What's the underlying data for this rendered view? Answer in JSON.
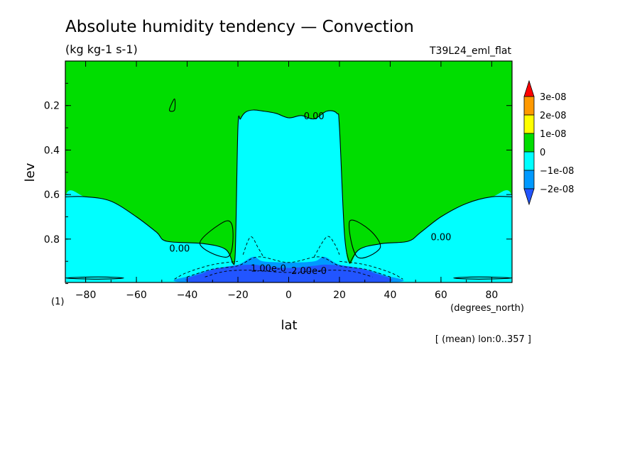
{
  "chart_data": {
    "type": "heatmap",
    "title": "Absolute humidity tendency — Convection",
    "units": "(kg kg-1 s-1)",
    "experiment": "T39L24_eml_flat",
    "xlabel": "lat",
    "xunits": "(degrees_north)",
    "ylabel": "lev",
    "yunits": "(1)",
    "footnote": "[ (mean) lon:0..357 ]",
    "xlim": [
      -88,
      88
    ],
    "ylim": [
      0.0,
      0.995
    ],
    "y_inverted": true,
    "x_ticks": [
      -80,
      -60,
      -40,
      -20,
      0,
      20,
      40,
      60,
      80
    ],
    "x_tick_labels": [
      "−80",
      "−60",
      "−40",
      "−20",
      "0",
      "20",
      "40",
      "60",
      "80"
    ],
    "y_ticks": [
      0.2,
      0.4,
      0.6,
      0.8
    ],
    "y_tick_labels": [
      "0.2",
      "0.4",
      "0.6",
      "0.8"
    ],
    "grid": false,
    "legend_position": "right",
    "colorbar": {
      "levels": [
        "3e-08",
        "2e-08",
        "1e-08",
        "0",
        "−1e-08",
        "−2e-08"
      ],
      "colors": [
        "#ff0000",
        "#ff9900",
        "#ffff00",
        "#00dd00",
        "#00ffff",
        "#0099ff",
        "#2255ff"
      ],
      "extend": "both"
    },
    "regions": [
      {
        "value_range": "0 to 1e-08",
        "color": "#00dd00",
        "boundary": [
          [
            -88,
            0.0
          ],
          [
            88,
            0.0
          ],
          [
            88,
            0.61
          ],
          [
            80,
            0.61
          ],
          [
            70,
            0.64
          ],
          [
            60,
            0.7
          ],
          [
            52,
            0.77
          ],
          [
            47,
            0.81
          ],
          [
            37,
            0.82
          ],
          [
            28,
            0.845
          ],
          [
            24,
            0.91
          ],
          [
            22,
            0.78
          ],
          [
            20,
            0.3
          ],
          [
            19,
            0.235
          ],
          [
            15,
            0.225
          ],
          [
            10,
            0.26
          ],
          [
            5,
            0.245
          ],
          [
            0,
            0.255
          ],
          [
            -5,
            0.235
          ],
          [
            -10,
            0.225
          ],
          [
            -14,
            0.22
          ],
          [
            -17,
            0.23
          ],
          [
            -19,
            0.26
          ],
          [
            -20,
            0.3
          ],
          [
            -21,
            0.85
          ],
          [
            -22,
            0.91
          ],
          [
            -25,
            0.845
          ],
          [
            -34,
            0.82
          ],
          [
            -48,
            0.81
          ],
          [
            -52,
            0.77
          ],
          [
            -60,
            0.7
          ],
          [
            -70,
            0.63
          ],
          [
            -80,
            0.61
          ],
          [
            -88,
            0.61
          ]
        ]
      },
      {
        "value_range": "-1e-08 to 0",
        "color": "#00ffff",
        "boundary": [
          [
            -88,
            0.61
          ],
          [
            -80,
            0.61
          ],
          [
            -70,
            0.63
          ],
          [
            -60,
            0.7
          ],
          [
            -52,
            0.77
          ],
          [
            -48,
            0.81
          ],
          [
            -34,
            0.82
          ],
          [
            -25,
            0.845
          ],
          [
            -22,
            0.91
          ],
          [
            -21,
            0.85
          ],
          [
            -20,
            0.3
          ],
          [
            -19,
            0.26
          ],
          [
            -17,
            0.23
          ],
          [
            -14,
            0.22
          ],
          [
            -10,
            0.225
          ],
          [
            -5,
            0.235
          ],
          [
            0,
            0.255
          ],
          [
            5,
            0.245
          ],
          [
            10,
            0.26
          ],
          [
            15,
            0.225
          ],
          [
            19,
            0.235
          ],
          [
            20,
            0.3
          ],
          [
            22,
            0.78
          ],
          [
            24,
            0.91
          ],
          [
            28,
            0.845
          ],
          [
            37,
            0.82
          ],
          [
            47,
            0.81
          ],
          [
            52,
            0.77
          ],
          [
            60,
            0.7
          ],
          [
            70,
            0.64
          ],
          [
            80,
            0.61
          ],
          [
            88,
            0.61
          ],
          [
            88,
            0.995
          ],
          [
            -88,
            0.995
          ]
        ]
      },
      {
        "value_range": "-2e-08 to -1e-08",
        "color": "#0099ff",
        "boundary": [
          [
            -40,
            0.995
          ],
          [
            -37,
            0.96
          ],
          [
            -30,
            0.935
          ],
          [
            -20,
            0.915
          ],
          [
            -14,
            0.88
          ],
          [
            -10,
            0.9
          ],
          [
            0,
            0.905
          ],
          [
            10,
            0.9
          ],
          [
            14,
            0.88
          ],
          [
            20,
            0.915
          ],
          [
            30,
            0.935
          ],
          [
            37,
            0.96
          ],
          [
            40,
            0.995
          ]
        ]
      },
      {
        "value_range": "< -2e-08",
        "color": "#2255ff",
        "boundary": [
          [
            -36,
            0.995
          ],
          [
            -33,
            0.95
          ],
          [
            -25,
            0.925
          ],
          [
            -15,
            0.915
          ],
          [
            -10,
            0.92
          ],
          [
            0,
            0.93
          ],
          [
            10,
            0.92
          ],
          [
            15,
            0.915
          ],
          [
            25,
            0.925
          ],
          [
            33,
            0.95
          ],
          [
            36,
            0.995
          ]
        ]
      }
    ],
    "contours": [
      {
        "label": "0.00",
        "label_at": [
          -43,
          0.84
        ],
        "points": [
          [
            -88,
            0.61
          ],
          [
            -80,
            0.61
          ],
          [
            -70,
            0.63
          ],
          [
            -60,
            0.7
          ],
          [
            -52,
            0.77
          ],
          [
            -48,
            0.81
          ],
          [
            -34,
            0.82
          ],
          [
            -25,
            0.845
          ],
          [
            -22,
            0.91
          ]
        ]
      },
      {
        "label": "0.00",
        "label_at": [
          10,
          0.245
        ],
        "points": [
          [
            -22,
            0.91
          ],
          [
            -21,
            0.85
          ],
          [
            -20,
            0.3
          ],
          [
            -19,
            0.26
          ],
          [
            -17,
            0.23
          ],
          [
            -14,
            0.22
          ],
          [
            -10,
            0.225
          ],
          [
            -5,
            0.235
          ],
          [
            0,
            0.255
          ],
          [
            5,
            0.245
          ],
          [
            10,
            0.26
          ],
          [
            15,
            0.225
          ],
          [
            19,
            0.235
          ],
          [
            20,
            0.3
          ],
          [
            22,
            0.78
          ],
          [
            24,
            0.91
          ]
        ]
      },
      {
        "label": "0.00",
        "label_at": [
          60,
          0.79
        ],
        "points": [
          [
            24,
            0.91
          ],
          [
            28,
            0.845
          ],
          [
            37,
            0.82
          ],
          [
            47,
            0.81
          ],
          [
            52,
            0.77
          ],
          [
            60,
            0.7
          ],
          [
            70,
            0.64
          ],
          [
            80,
            0.61
          ],
          [
            88,
            0.61
          ]
        ]
      },
      {
        "label": "",
        "points": [
          [
            -35,
            0.82
          ],
          [
            -25,
            0.72
          ],
          [
            -22,
            0.76
          ],
          [
            -24,
            0.88
          ],
          [
            -35,
            0.82
          ]
        ]
      },
      {
        "label": "",
        "points": [
          [
            24,
            0.72
          ],
          [
            32,
            0.76
          ],
          [
            36,
            0.84
          ],
          [
            27,
            0.88
          ],
          [
            24,
            0.72
          ]
        ]
      },
      {
        "label": "",
        "points": [
          [
            -47,
            0.22
          ],
          [
            -45,
            0.17
          ],
          [
            -45,
            0.22
          ],
          [
            -47,
            0.22
          ]
        ]
      },
      {
        "label": "",
        "points": [
          [
            -88,
            0.975
          ],
          [
            -75,
            0.97
          ],
          [
            -65,
            0.975
          ],
          [
            -75,
            0.98
          ],
          [
            -88,
            0.975
          ]
        ]
      },
      {
        "label": "",
        "points": [
          [
            88,
            0.975
          ],
          [
            75,
            0.97
          ],
          [
            65,
            0.975
          ],
          [
            75,
            0.98
          ],
          [
            88,
            0.975
          ]
        ]
      }
    ],
    "dashed_contours": [
      {
        "label": "1.00e-0",
        "label_at": [
          -8,
          0.93
        ],
        "points": [
          [
            -40,
            0.97
          ],
          [
            -30,
            0.935
          ],
          [
            -20,
            0.92
          ],
          [
            -12,
            0.88
          ],
          [
            0,
            0.905
          ],
          [
            12,
            0.88
          ],
          [
            20,
            0.92
          ],
          [
            30,
            0.935
          ],
          [
            40,
            0.97
          ]
        ]
      },
      {
        "label": "2.00e-0",
        "label_at": [
          8,
          0.94
        ],
        "points": [
          [
            -33,
            0.97
          ],
          [
            -25,
            0.945
          ],
          [
            -15,
            0.94
          ],
          [
            0,
            0.95
          ],
          [
            15,
            0.94
          ],
          [
            25,
            0.945
          ],
          [
            33,
            0.97
          ]
        ]
      },
      {
        "label": "",
        "points": [
          [
            -18,
            0.87
          ],
          [
            -15,
            0.79
          ],
          [
            -12,
            0.84
          ],
          [
            -10,
            0.88
          ]
        ]
      },
      {
        "label": "",
        "points": [
          [
            10,
            0.88
          ],
          [
            15,
            0.79
          ],
          [
            18,
            0.82
          ],
          [
            20,
            0.87
          ]
        ]
      },
      {
        "label": "",
        "points": [
          [
            -45,
            0.98
          ],
          [
            -40,
            0.95
          ],
          [
            -30,
            0.915
          ],
          [
            -20,
            0.9
          ]
        ]
      },
      {
        "label": "",
        "points": [
          [
            20,
            0.9
          ],
          [
            30,
            0.915
          ],
          [
            40,
            0.95
          ],
          [
            45,
            0.98
          ]
        ]
      }
    ]
  }
}
